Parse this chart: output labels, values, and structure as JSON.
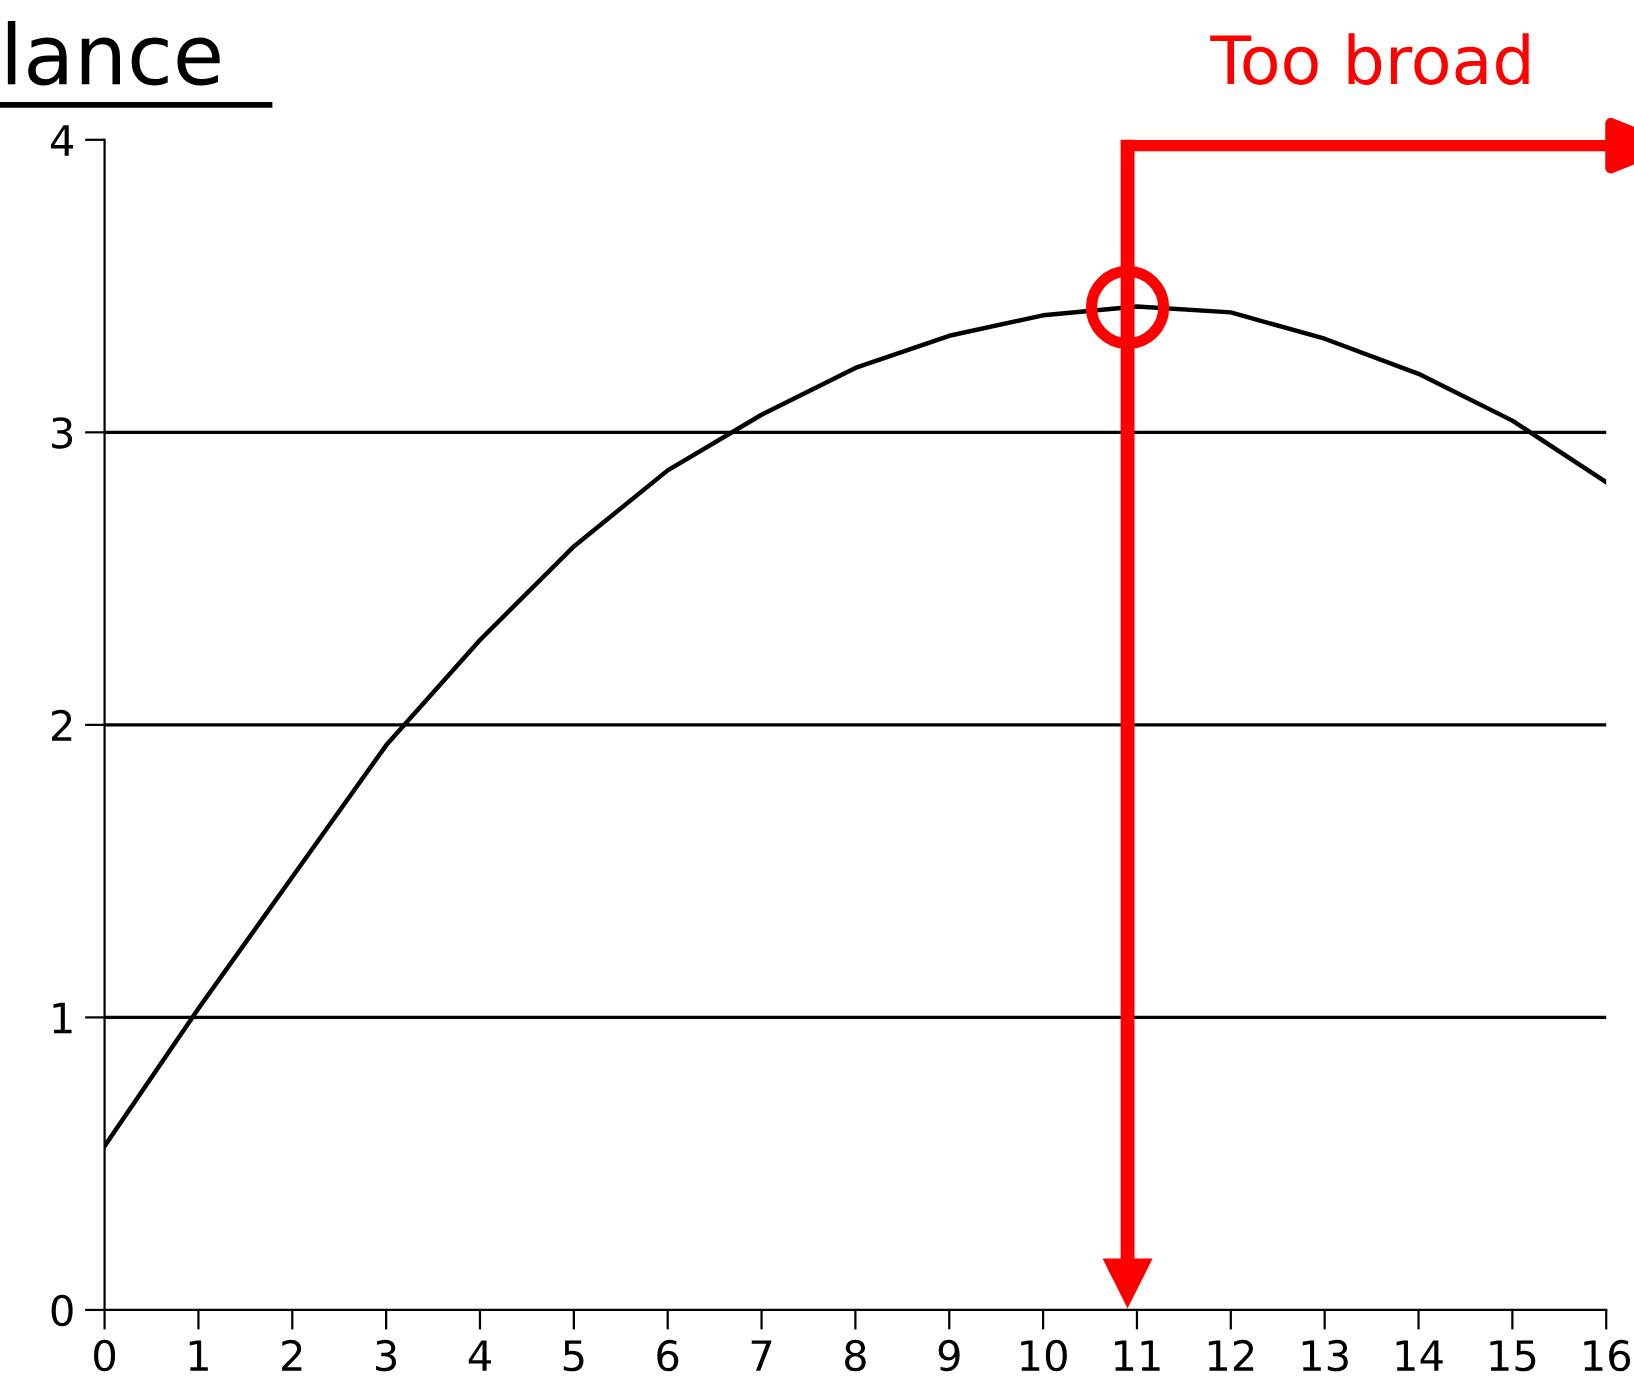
{
  "chart_data": {
    "type": "line",
    "title": "lance",
    "x": [
      0,
      1,
      2,
      3,
      4,
      5,
      6,
      7,
      8,
      9,
      10,
      11,
      12,
      13,
      14,
      15,
      16
    ],
    "series": [
      {
        "color": "#000000",
        "values": [
          0.56,
          1.03,
          1.48,
          1.93,
          2.29,
          2.61,
          2.87,
          3.06,
          3.22,
          3.33,
          3.4,
          3.43,
          3.41,
          3.32,
          3.2,
          3.04,
          2.83
        ]
      }
    ],
    "xlim": [
      0,
      16
    ],
    "ylim": [
      0,
      4
    ],
    "xticks": [
      0,
      1,
      2,
      3,
      4,
      5,
      6,
      7,
      8,
      9,
      10,
      11,
      12,
      13,
      14,
      15,
      16
    ],
    "yticks": [
      0,
      1,
      2,
      3,
      4
    ],
    "ref_lines": [
      {
        "axis": "y",
        "value": 1,
        "color": "#000000"
      },
      {
        "axis": "y",
        "value": 2,
        "color": "#000000"
      },
      {
        "axis": "y",
        "value": 3,
        "color": "#000000"
      },
      {
        "axis": "x",
        "value": 10.9,
        "color": "#ff0000"
      }
    ],
    "annotations": [
      "Too broad"
    ]
  }
}
